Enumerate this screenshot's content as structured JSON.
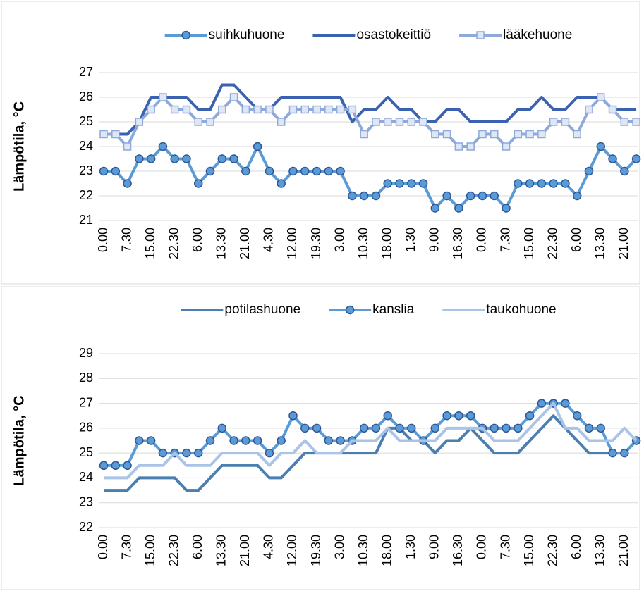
{
  "chart_data": [
    {
      "type": "line",
      "y_label": "Lämpötila, °C",
      "legend": "top",
      "categories": [
        "0.00",
        null,
        "7.30",
        null,
        "15.00",
        null,
        "22.30",
        null,
        "6.00",
        null,
        "13.30",
        null,
        "21.00",
        null,
        "4.30",
        null,
        "12.00",
        null,
        "19.30",
        null,
        "3.00",
        null,
        "10.30",
        null,
        "18.00",
        null,
        "1.30",
        null,
        "9.00",
        null,
        "16.30",
        null,
        "0.00",
        null,
        "7.30",
        null,
        "15.00",
        null,
        "22.30",
        null,
        "6.00",
        null,
        "13.30",
        null,
        "21.00",
        null
      ],
      "ylim": [
        21,
        27
      ],
      "yticks": [
        21,
        22,
        23,
        24,
        25,
        26,
        27
      ],
      "series": [
        {
          "name": "suihkuhuone",
          "color": "#5b9bd5",
          "marker": "circle",
          "values": [
            23,
            23,
            22.5,
            23.5,
            23.5,
            24,
            23.5,
            23.5,
            22.5,
            23,
            23.5,
            23.5,
            23,
            24,
            23,
            22.5,
            23,
            23,
            23,
            23,
            23,
            22,
            22,
            22,
            22.5,
            22.5,
            22.5,
            22.5,
            21.5,
            22,
            21.5,
            22,
            22,
            22,
            21.5,
            22.5,
            22.5,
            22.5,
            22.5,
            22.5,
            22,
            23,
            24,
            23.5,
            23,
            23.5
          ]
        },
        {
          "name": "osastokeittiö",
          "color": "#3a62b0",
          "marker": "none",
          "values": [
            24.5,
            24.5,
            24.5,
            25,
            26,
            26,
            26,
            26,
            25.5,
            25.5,
            26.5,
            26.5,
            26,
            25.5,
            25.5,
            26,
            26,
            26,
            26,
            26,
            26,
            25,
            25.5,
            25.5,
            26,
            25.5,
            25.5,
            25,
            25,
            25.5,
            25.5,
            25,
            25,
            25,
            25,
            25.5,
            25.5,
            26,
            25.5,
            25.5,
            26,
            26,
            26,
            25.5,
            25.5,
            25.5
          ]
        },
        {
          "name": "lääkehuone",
          "color": "#8ea9db",
          "marker": "square",
          "values": [
            24.5,
            24.5,
            24,
            25,
            25.5,
            26,
            25.5,
            25.5,
            25,
            25,
            25.5,
            26,
            25.5,
            25.5,
            25.5,
            25,
            25.5,
            25.5,
            25.5,
            25.5,
            25.5,
            25.5,
            24.5,
            25,
            25,
            25,
            25,
            25,
            24.5,
            24.5,
            24,
            24,
            24.5,
            24.5,
            24,
            24.5,
            24.5,
            24.5,
            25,
            25,
            24.5,
            25.5,
            26,
            25.5,
            25,
            25
          ]
        }
      ]
    },
    {
      "type": "line",
      "y_label": "Lämpötila, °C",
      "legend": "top",
      "categories": [
        "0.00",
        null,
        "7.30",
        null,
        "15.00",
        null,
        "22.30",
        null,
        "6.00",
        null,
        "13.30",
        null,
        "21.00",
        null,
        "4.30",
        null,
        "12.00",
        null,
        "19.30",
        null,
        "3.00",
        null,
        "10.30",
        null,
        "18.00",
        null,
        "1.30",
        null,
        "9.00",
        null,
        "16.30",
        null,
        "0.00",
        null,
        "7.30",
        null,
        "15.00",
        null,
        "22.30",
        null,
        "6.00",
        null,
        "13.30",
        null,
        "21.00",
        null
      ],
      "ylim": [
        22,
        29
      ],
      "yticks": [
        22,
        23,
        24,
        25,
        26,
        27,
        28,
        29
      ],
      "series": [
        {
          "name": "potilashuone",
          "color": "#4a7fb0",
          "marker": "none",
          "values": [
            23.5,
            23.5,
            23.5,
            24,
            24,
            24,
            24,
            23.5,
            23.5,
            24,
            24.5,
            24.5,
            24.5,
            24.5,
            24,
            24,
            24.5,
            25,
            25,
            25,
            25,
            25,
            25,
            25,
            26,
            26,
            25.5,
            25.5,
            25,
            25.5,
            25.5,
            26,
            25.5,
            25,
            25,
            25,
            25.5,
            26,
            26.5,
            26,
            25.5,
            25,
            25,
            25,
            25,
            25.5
          ]
        },
        {
          "name": "kanslia",
          "color": "#5b9bd5",
          "marker": "circle",
          "values": [
            24.5,
            24.5,
            24.5,
            25.5,
            25.5,
            25,
            25,
            25,
            25,
            25.5,
            26,
            25.5,
            25.5,
            25.5,
            25,
            25.5,
            26.5,
            26,
            26,
            25.5,
            25.5,
            25.5,
            26,
            26,
            26.5,
            26,
            26,
            25.5,
            26,
            26.5,
            26.5,
            26.5,
            26,
            26,
            26,
            26,
            26.5,
            27,
            27,
            27,
            26.5,
            26,
            26,
            25,
            25,
            25.5
          ]
        },
        {
          "name": "taukohuone",
          "color": "#a9c4e6",
          "marker": "none",
          "values": [
            24,
            24,
            24,
            24.5,
            24.5,
            24.5,
            25,
            24.5,
            24.5,
            24.5,
            25,
            25,
            25,
            25,
            24.5,
            25,
            25,
            25.5,
            25,
            25,
            25,
            25.5,
            25.5,
            25.5,
            26,
            25.5,
            25.5,
            25.5,
            25.5,
            26,
            26,
            26,
            26,
            25.5,
            25.5,
            25.5,
            26,
            26.5,
            27,
            26,
            26,
            25.5,
            25.5,
            25.5,
            26,
            25.5
          ]
        }
      ]
    }
  ]
}
